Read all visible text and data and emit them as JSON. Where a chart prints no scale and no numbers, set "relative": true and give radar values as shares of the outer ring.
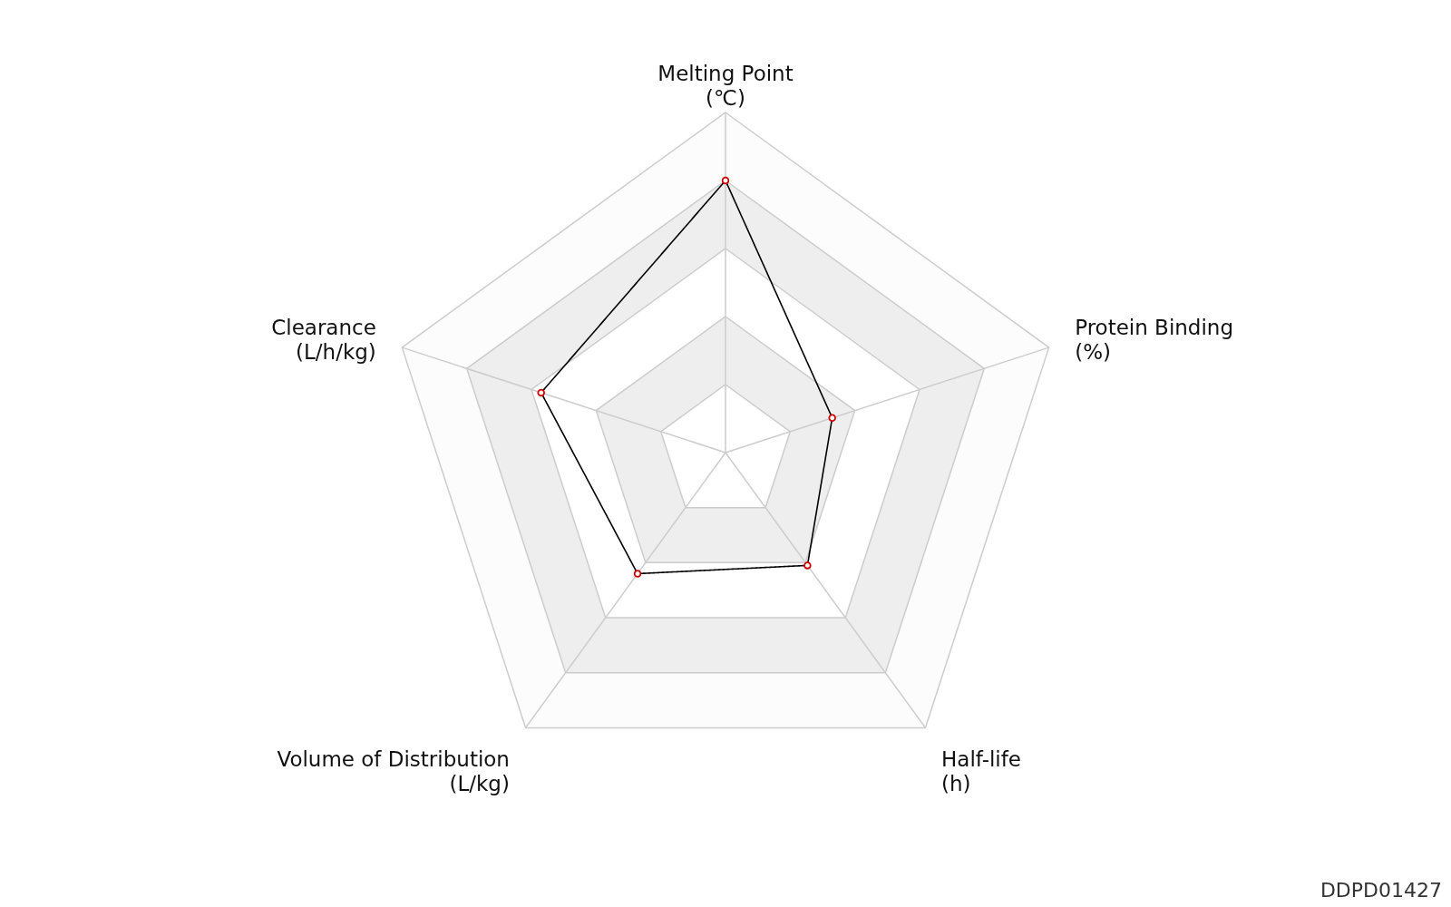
{
  "chart_data": {
    "type": "radar",
    "relative": true,
    "categories": [
      "Melting Point\n(℃)",
      "Protein Binding\n(%)",
      "Half-life\n(h)",
      "Volume of Distribution\n(L/kg)",
      "Clearance\n(L/h/kg)"
    ],
    "series": [
      {
        "color": "#000000",
        "values": [
          0.8,
          0.33,
          0.41,
          0.44,
          0.57
        ]
      }
    ],
    "marker": "circle",
    "annotations": [
      "DDPD01427"
    ]
  }
}
